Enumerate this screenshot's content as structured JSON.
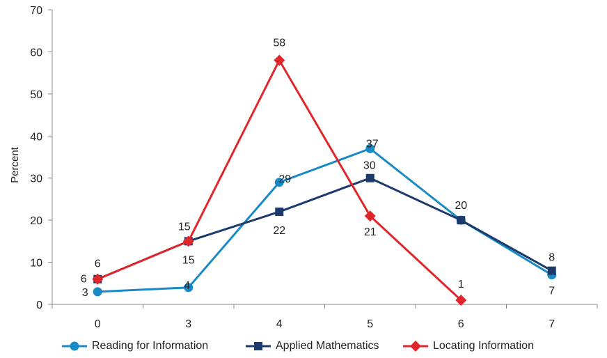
{
  "chart_data": {
    "type": "line",
    "categories": [
      "0",
      "3",
      "4",
      "5",
      "6",
      "7"
    ],
    "ylabel": "Percent",
    "xlabel": "",
    "ylim": [
      0,
      70
    ],
    "yticks": [
      0,
      10,
      20,
      30,
      40,
      50,
      60,
      70
    ],
    "grid": false,
    "legend_position": "bottom",
    "series": [
      {
        "name": "Reading for Information",
        "color": "#1a8ac6",
        "marker": "circle",
        "values": [
          3,
          4,
          29,
          37,
          20,
          7
        ],
        "labels": [
          "3",
          "4",
          "29",
          "37",
          "",
          "7"
        ]
      },
      {
        "name": "Applied Mathematics",
        "color": "#1c3a6b",
        "marker": "square",
        "values": [
          6,
          15,
          22,
          30,
          20,
          8
        ],
        "labels": [
          "6",
          "15",
          "22",
          "30",
          "20",
          "8"
        ]
      },
      {
        "name": "Locating Information",
        "color": "#e0262b",
        "marker": "diamond",
        "values": [
          6,
          15,
          58,
          21,
          1,
          null
        ],
        "labels": [
          "6",
          "15",
          "58",
          "21",
          "1",
          ""
        ]
      }
    ]
  }
}
